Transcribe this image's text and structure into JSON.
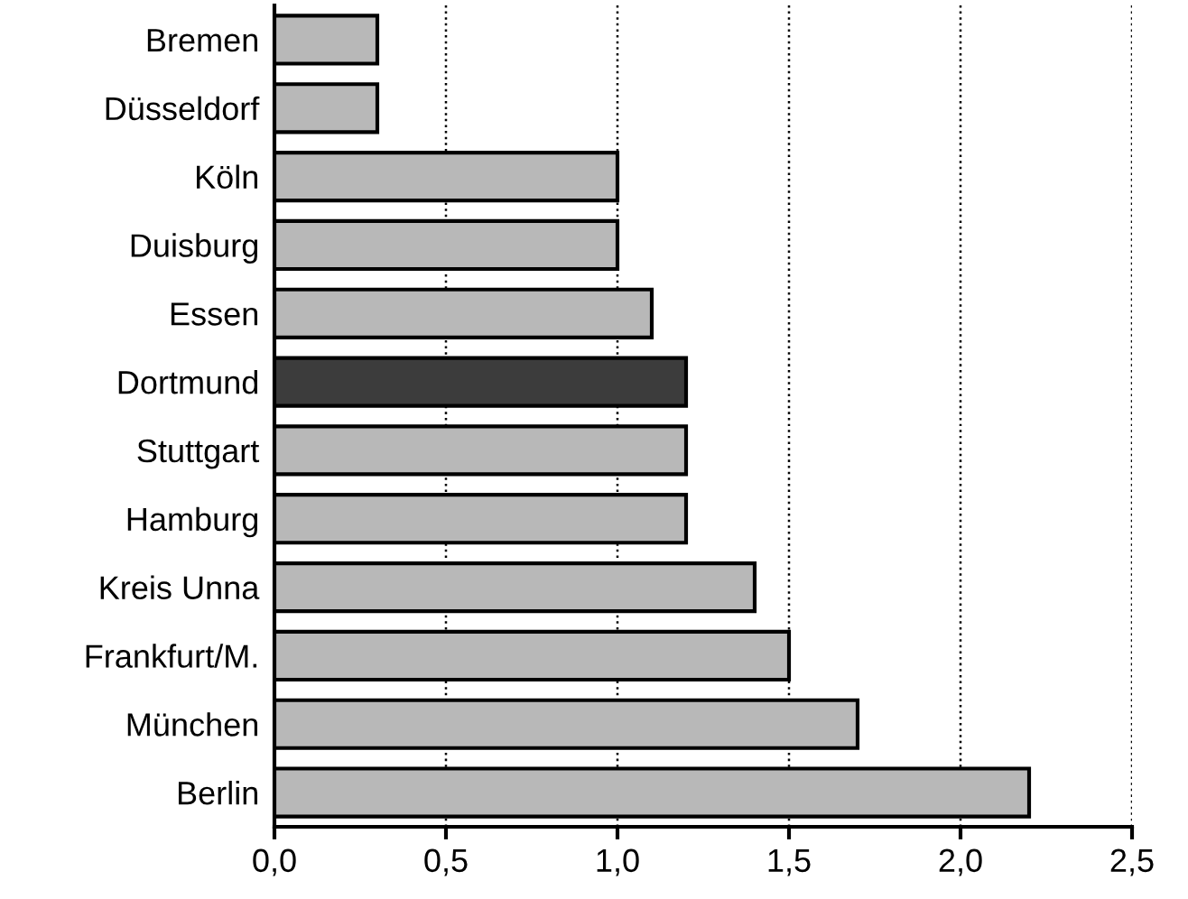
{
  "chart_data": {
    "type": "bar",
    "orientation": "horizontal",
    "categories": [
      "Bremen",
      "Düsseldorf",
      "Köln",
      "Duisburg",
      "Essen",
      "Dortmund",
      "Stuttgart",
      "Hamburg",
      "Kreis Unna",
      "Frankfurt/M.",
      "München",
      "Berlin"
    ],
    "values": [
      0.3,
      0.3,
      1.0,
      1.0,
      1.1,
      1.2,
      1.2,
      1.2,
      1.4,
      1.5,
      1.7,
      2.2
    ],
    "colors": [
      "#b8b8b8",
      "#b8b8b8",
      "#b8b8b8",
      "#b8b8b8",
      "#b8b8b8",
      "#3c3c3c",
      "#b8b8b8",
      "#b8b8b8",
      "#b8b8b8",
      "#b8b8b8",
      "#b8b8b8",
      "#b8b8b8"
    ],
    "xlim": [
      0,
      2.5
    ],
    "xticks": [
      {
        "value": 0,
        "label": "0,0"
      },
      {
        "value": 0.5,
        "label": "0,5"
      },
      {
        "value": 1,
        "label": "1,0"
      },
      {
        "value": 1.5,
        "label": "1,5"
      },
      {
        "value": 2,
        "label": "2,0"
      },
      {
        "value": 2.5,
        "label": "2,5"
      }
    ],
    "grid": "x",
    "line_style": "dotted"
  }
}
